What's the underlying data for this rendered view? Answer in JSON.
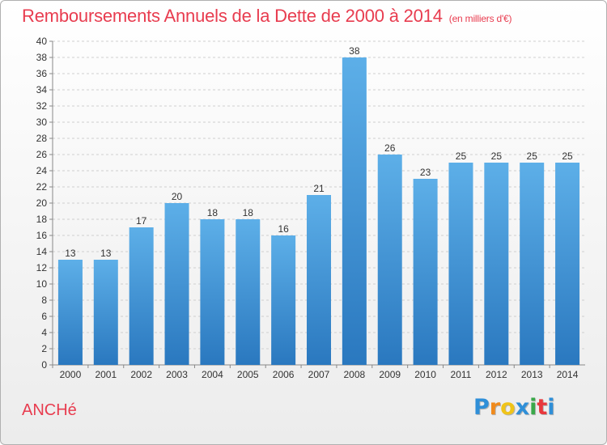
{
  "title": "Remboursements Annuels de la Dette de 2000 à 2014",
  "subtitle": "(en milliers d'€)",
  "commune": "ANCHé",
  "logo": {
    "letters": [
      "P",
      "r",
      "o",
      "x",
      "i",
      "t",
      "i"
    ],
    "colors": [
      "#2f8fd8",
      "#f08a1c",
      "#f0c419",
      "#2f8fd8",
      "#3aa84a",
      "#e8383d",
      "#2f8fd8"
    ]
  },
  "colors": {
    "bar_top": "#5dafe8",
    "bar_bottom": "#2a78bf",
    "title": "#e83c4f",
    "grid": "#cfcfcf"
  },
  "chart_data": {
    "type": "bar",
    "categories": [
      "2000",
      "2001",
      "2002",
      "2003",
      "2004",
      "2005",
      "2006",
      "2007",
      "2008",
      "2009",
      "2010",
      "2011",
      "2012",
      "2013",
      "2014"
    ],
    "values": [
      13,
      13,
      17,
      20,
      18,
      18,
      16,
      21,
      38,
      26,
      23,
      25,
      25,
      25,
      25
    ],
    "xlabel": "",
    "ylabel": "",
    "ylim": [
      0,
      40
    ],
    "yticks": [
      0,
      2,
      4,
      6,
      8,
      10,
      12,
      14,
      16,
      18,
      20,
      22,
      24,
      26,
      28,
      30,
      32,
      34,
      36,
      38,
      40
    ],
    "grid": true,
    "legend": "none"
  }
}
